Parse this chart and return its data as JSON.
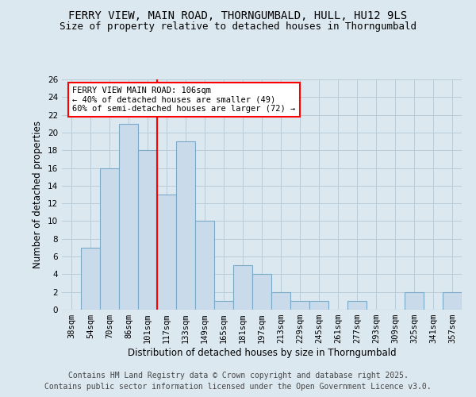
{
  "title1": "FERRY VIEW, MAIN ROAD, THORNGUMBALD, HULL, HU12 9LS",
  "title2": "Size of property relative to detached houses in Thorngumbald",
  "xlabel": "Distribution of detached houses by size in Thorngumbald",
  "ylabel": "Number of detached properties",
  "categories": [
    "38sqm",
    "54sqm",
    "70sqm",
    "86sqm",
    "101sqm",
    "117sqm",
    "133sqm",
    "149sqm",
    "165sqm",
    "181sqm",
    "197sqm",
    "213sqm",
    "229sqm",
    "245sqm",
    "261sqm",
    "277sqm",
    "293sqm",
    "309sqm",
    "325sqm",
    "341sqm",
    "357sqm"
  ],
  "values": [
    0,
    7,
    16,
    21,
    18,
    13,
    19,
    10,
    1,
    5,
    4,
    2,
    1,
    1,
    0,
    1,
    0,
    0,
    2,
    0,
    2
  ],
  "bar_color": "#c9daea",
  "bar_edge_color": "#7aaac8",
  "red_line_x": 4.5,
  "annotation_line1": "FERRY VIEW MAIN ROAD: 106sqm",
  "annotation_line2": "← 40% of detached houses are smaller (49)",
  "annotation_line3": "60% of semi-detached houses are larger (72) →",
  "ylim": [
    0,
    26
  ],
  "yticks": [
    0,
    2,
    4,
    6,
    8,
    10,
    12,
    14,
    16,
    18,
    20,
    22,
    24,
    26
  ],
  "footnote1": "Contains HM Land Registry data © Crown copyright and database right 2025.",
  "footnote2": "Contains public sector information licensed under the Open Government Licence v3.0.",
  "background_color": "#dce8f0",
  "grid_color": "#b8ccd8",
  "title_fontsize": 10,
  "subtitle_fontsize": 9,
  "axis_label_fontsize": 8.5,
  "tick_fontsize": 7.5,
  "footnote_fontsize": 7
}
